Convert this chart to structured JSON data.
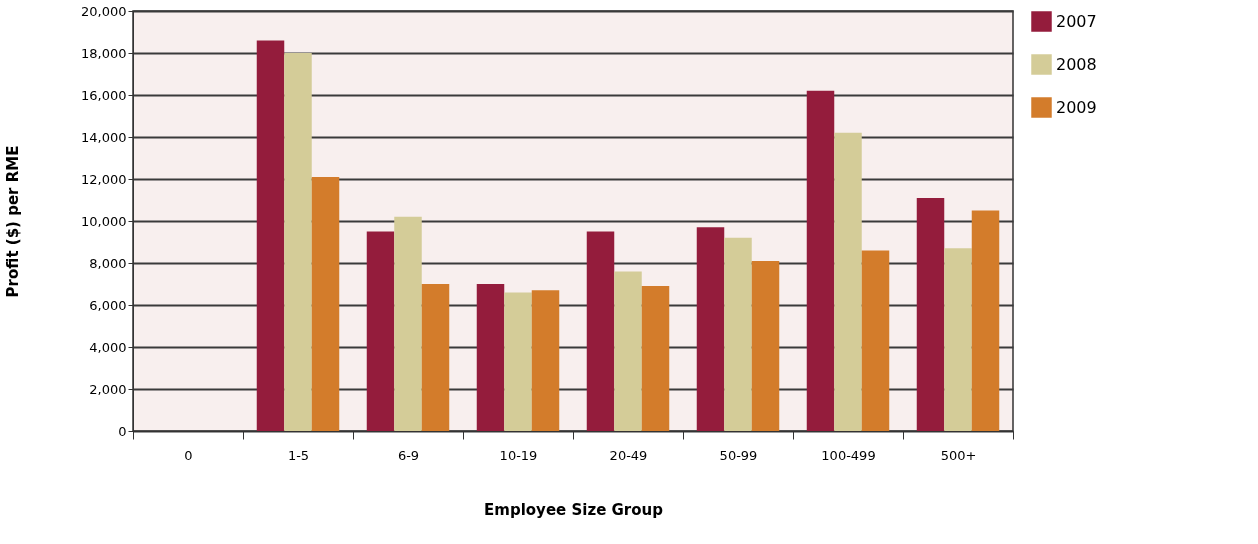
{
  "chart_data": {
    "type": "bar",
    "xlabel": "Employee Size Group",
    "ylabel": "Profit ($) per RME",
    "categories": [
      "0",
      "1-5",
      "6-9",
      "10-19",
      "20-49",
      "50-99",
      "100-499",
      "500+"
    ],
    "series": [
      {
        "name": "2007",
        "color": "#941c3c",
        "values": [
          null,
          18600,
          9500,
          7000,
          9500,
          9700,
          16200,
          11100
        ]
      },
      {
        "name": "2008",
        "color": "#d4cc98",
        "values": [
          null,
          18000,
          10200,
          6600,
          7600,
          9200,
          14200,
          8700
        ]
      },
      {
        "name": "2009",
        "color": "#d37c2b",
        "values": [
          null,
          12100,
          7000,
          6700,
          6900,
          8100,
          8600,
          10500
        ]
      }
    ],
    "ylim": [
      0,
      20000
    ],
    "yticks": [
      0,
      {
        "value": 2000,
        "label": "2,000"
      },
      {
        "value": 4000,
        "label": "4,000"
      },
      {
        "value": 6000,
        "label": "6,000"
      },
      {
        "value": 8000,
        "label": "8,000"
      },
      {
        "value": 10000,
        "label": "10,000"
      },
      {
        "value": 12000,
        "label": "12,000"
      },
      {
        "value": 14000,
        "label": "14,000"
      },
      {
        "value": 16000,
        "label": "16,000"
      },
      {
        "value": 18000,
        "label": "18,000"
      },
      {
        "value": 20000,
        "label": "20,000"
      }
    ],
    "grid": "y",
    "legend": "top right"
  }
}
